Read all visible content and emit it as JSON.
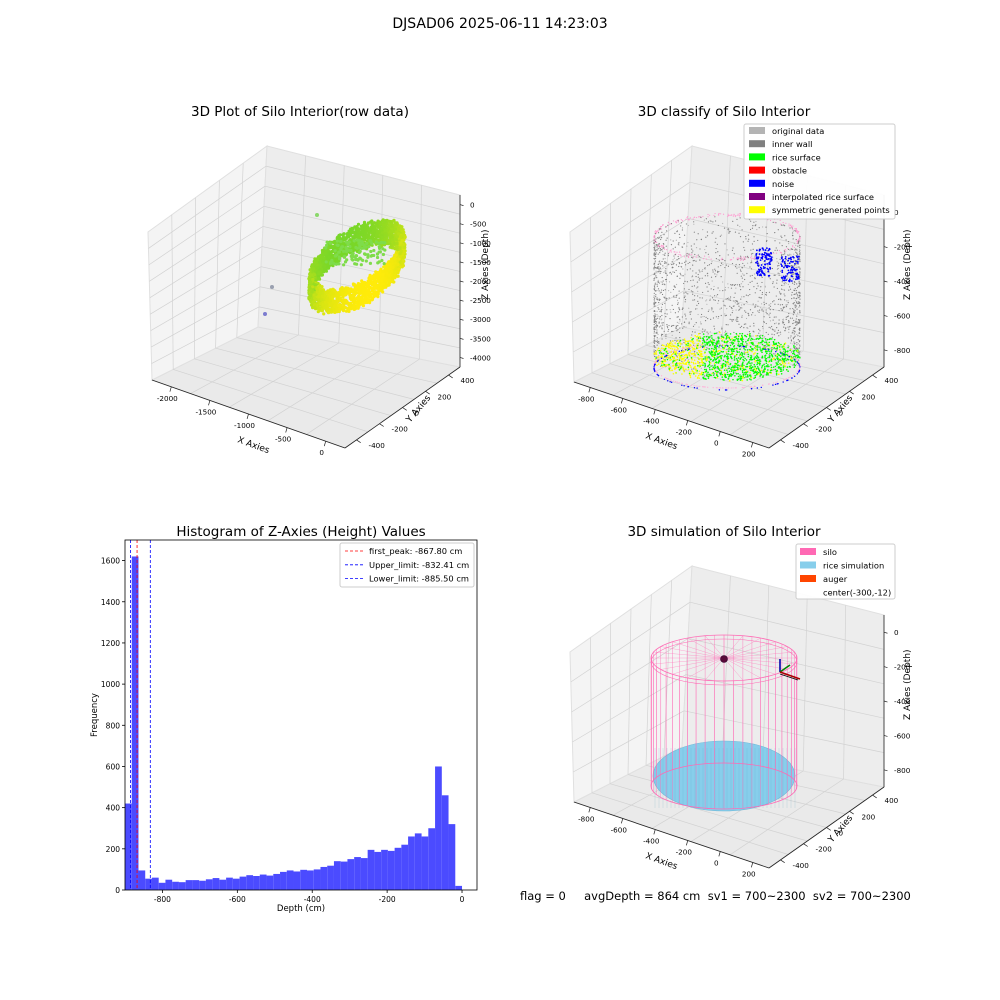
{
  "suptitle": "DJSAD06 2025-06-11 14:23:03",
  "status_line": "flag = 0     avgDepth = 864 cm  sv1 = 700~2300  sv2 = 700~2300",
  "panels": {
    "raw": {
      "title": "3D Plot of Silo Interior(row data)",
      "xlabel": "X Axies",
      "ylabel": "Y Axies",
      "zlabel": "Z Axies (Depth)",
      "xticks": [
        "-2000",
        "-1500",
        "-1000",
        "-500",
        "0"
      ],
      "yticks": [
        "-400",
        "-200",
        "0",
        "200",
        "400"
      ],
      "zticks": [
        "0",
        "-500",
        "-1000",
        "-1500",
        "-2000",
        "-2500",
        "-3000",
        "-3500",
        "-4000"
      ]
    },
    "classify": {
      "title": "3D classify of Silo Interior",
      "xlabel": "X Axies",
      "ylabel": "Y Axies",
      "zlabel": "Z Axies (Depth)",
      "xticks": [
        "-800",
        "-600",
        "-400",
        "-200",
        "0",
        "200"
      ],
      "yticks": [
        "-400",
        "-200",
        "0",
        "200",
        "400"
      ],
      "zticks": [
        "0",
        "-200",
        "-400",
        "-600",
        "-800"
      ],
      "legend": [
        {
          "label": "original data",
          "color": "#b4b4b4"
        },
        {
          "label": "inner wall",
          "color": "#808080"
        },
        {
          "label": "rice surface",
          "color": "#00ff00"
        },
        {
          "label": "obstacle",
          "color": "#ff0000"
        },
        {
          "label": "noise",
          "color": "#0000ff"
        },
        {
          "label": "interpolated rice surface",
          "color": "#800080"
        },
        {
          "label": "symmetric generated points",
          "color": "#ffff00"
        }
      ]
    },
    "simulation": {
      "title": "3D simulation of Silo Interior",
      "xlabel": "X Axies",
      "ylabel": "Y Axies",
      "zlabel": "Z Axies (Depth)",
      "xticks": [
        "-800",
        "-600",
        "-400",
        "-200",
        "0",
        "200"
      ],
      "yticks": [
        "-400",
        "-200",
        "0",
        "200",
        "400"
      ],
      "zticks": [
        "0",
        "-200",
        "-400",
        "-600",
        "-800"
      ],
      "legend": [
        {
          "label": "silo",
          "color": "#ff69b4"
        },
        {
          "label": "rice simulation",
          "color": "#87ceeb"
        },
        {
          "label": "auger",
          "color": "#ff4500"
        },
        {
          "label": "center(-300,-12)",
          "color": ""
        }
      ]
    }
  },
  "chart_data": [
    {
      "type": "bar",
      "title": "Histogram of Z-Axies (Height) Values",
      "xlabel": "Depth (cm)",
      "ylabel": "Frequency",
      "xlim": [
        -900,
        40
      ],
      "ylim": [
        0,
        1700
      ],
      "xticks": [
        -800,
        -600,
        -400,
        -200,
        0
      ],
      "yticks": [
        0,
        200,
        400,
        600,
        800,
        1000,
        1200,
        1400,
        1600
      ],
      "bar_color": "#4b4bff",
      "bin_edges": [
        -900,
        -882,
        -864,
        -846,
        -828,
        -810,
        -792,
        -774,
        -756,
        -738,
        -720,
        -702,
        -684,
        -666,
        -648,
        -630,
        -612,
        -594,
        -576,
        -558,
        -540,
        -522,
        -504,
        -486,
        -468,
        -450,
        -432,
        -414,
        -396,
        -378,
        -360,
        -342,
        -324,
        -306,
        -288,
        -270,
        -252,
        -234,
        -216,
        -198,
        -180,
        -162,
        -144,
        -126,
        -108,
        -90,
        -72,
        -54,
        -36,
        -18,
        0
      ],
      "values": [
        420,
        1620,
        95,
        55,
        60,
        35,
        50,
        40,
        38,
        48,
        48,
        45,
        52,
        58,
        50,
        60,
        55,
        65,
        72,
        68,
        75,
        70,
        78,
        88,
        95,
        90,
        98,
        95,
        100,
        112,
        118,
        140,
        138,
        150,
        160,
        155,
        195,
        185,
        195,
        190,
        205,
        220,
        260,
        275,
        260,
        300,
        600,
        460,
        320,
        20
      ],
      "vlines": [
        {
          "label": "first_peak: -867.80 cm",
          "x": -867.8,
          "color": "#ff0000"
        },
        {
          "label": "Upper_limit: -832.41 cm",
          "x": -832.41,
          "color": "#0000ff"
        },
        {
          "label": "Lower_limit: -885.50 cm",
          "x": -885.5,
          "color": "#0000ff"
        }
      ]
    }
  ]
}
